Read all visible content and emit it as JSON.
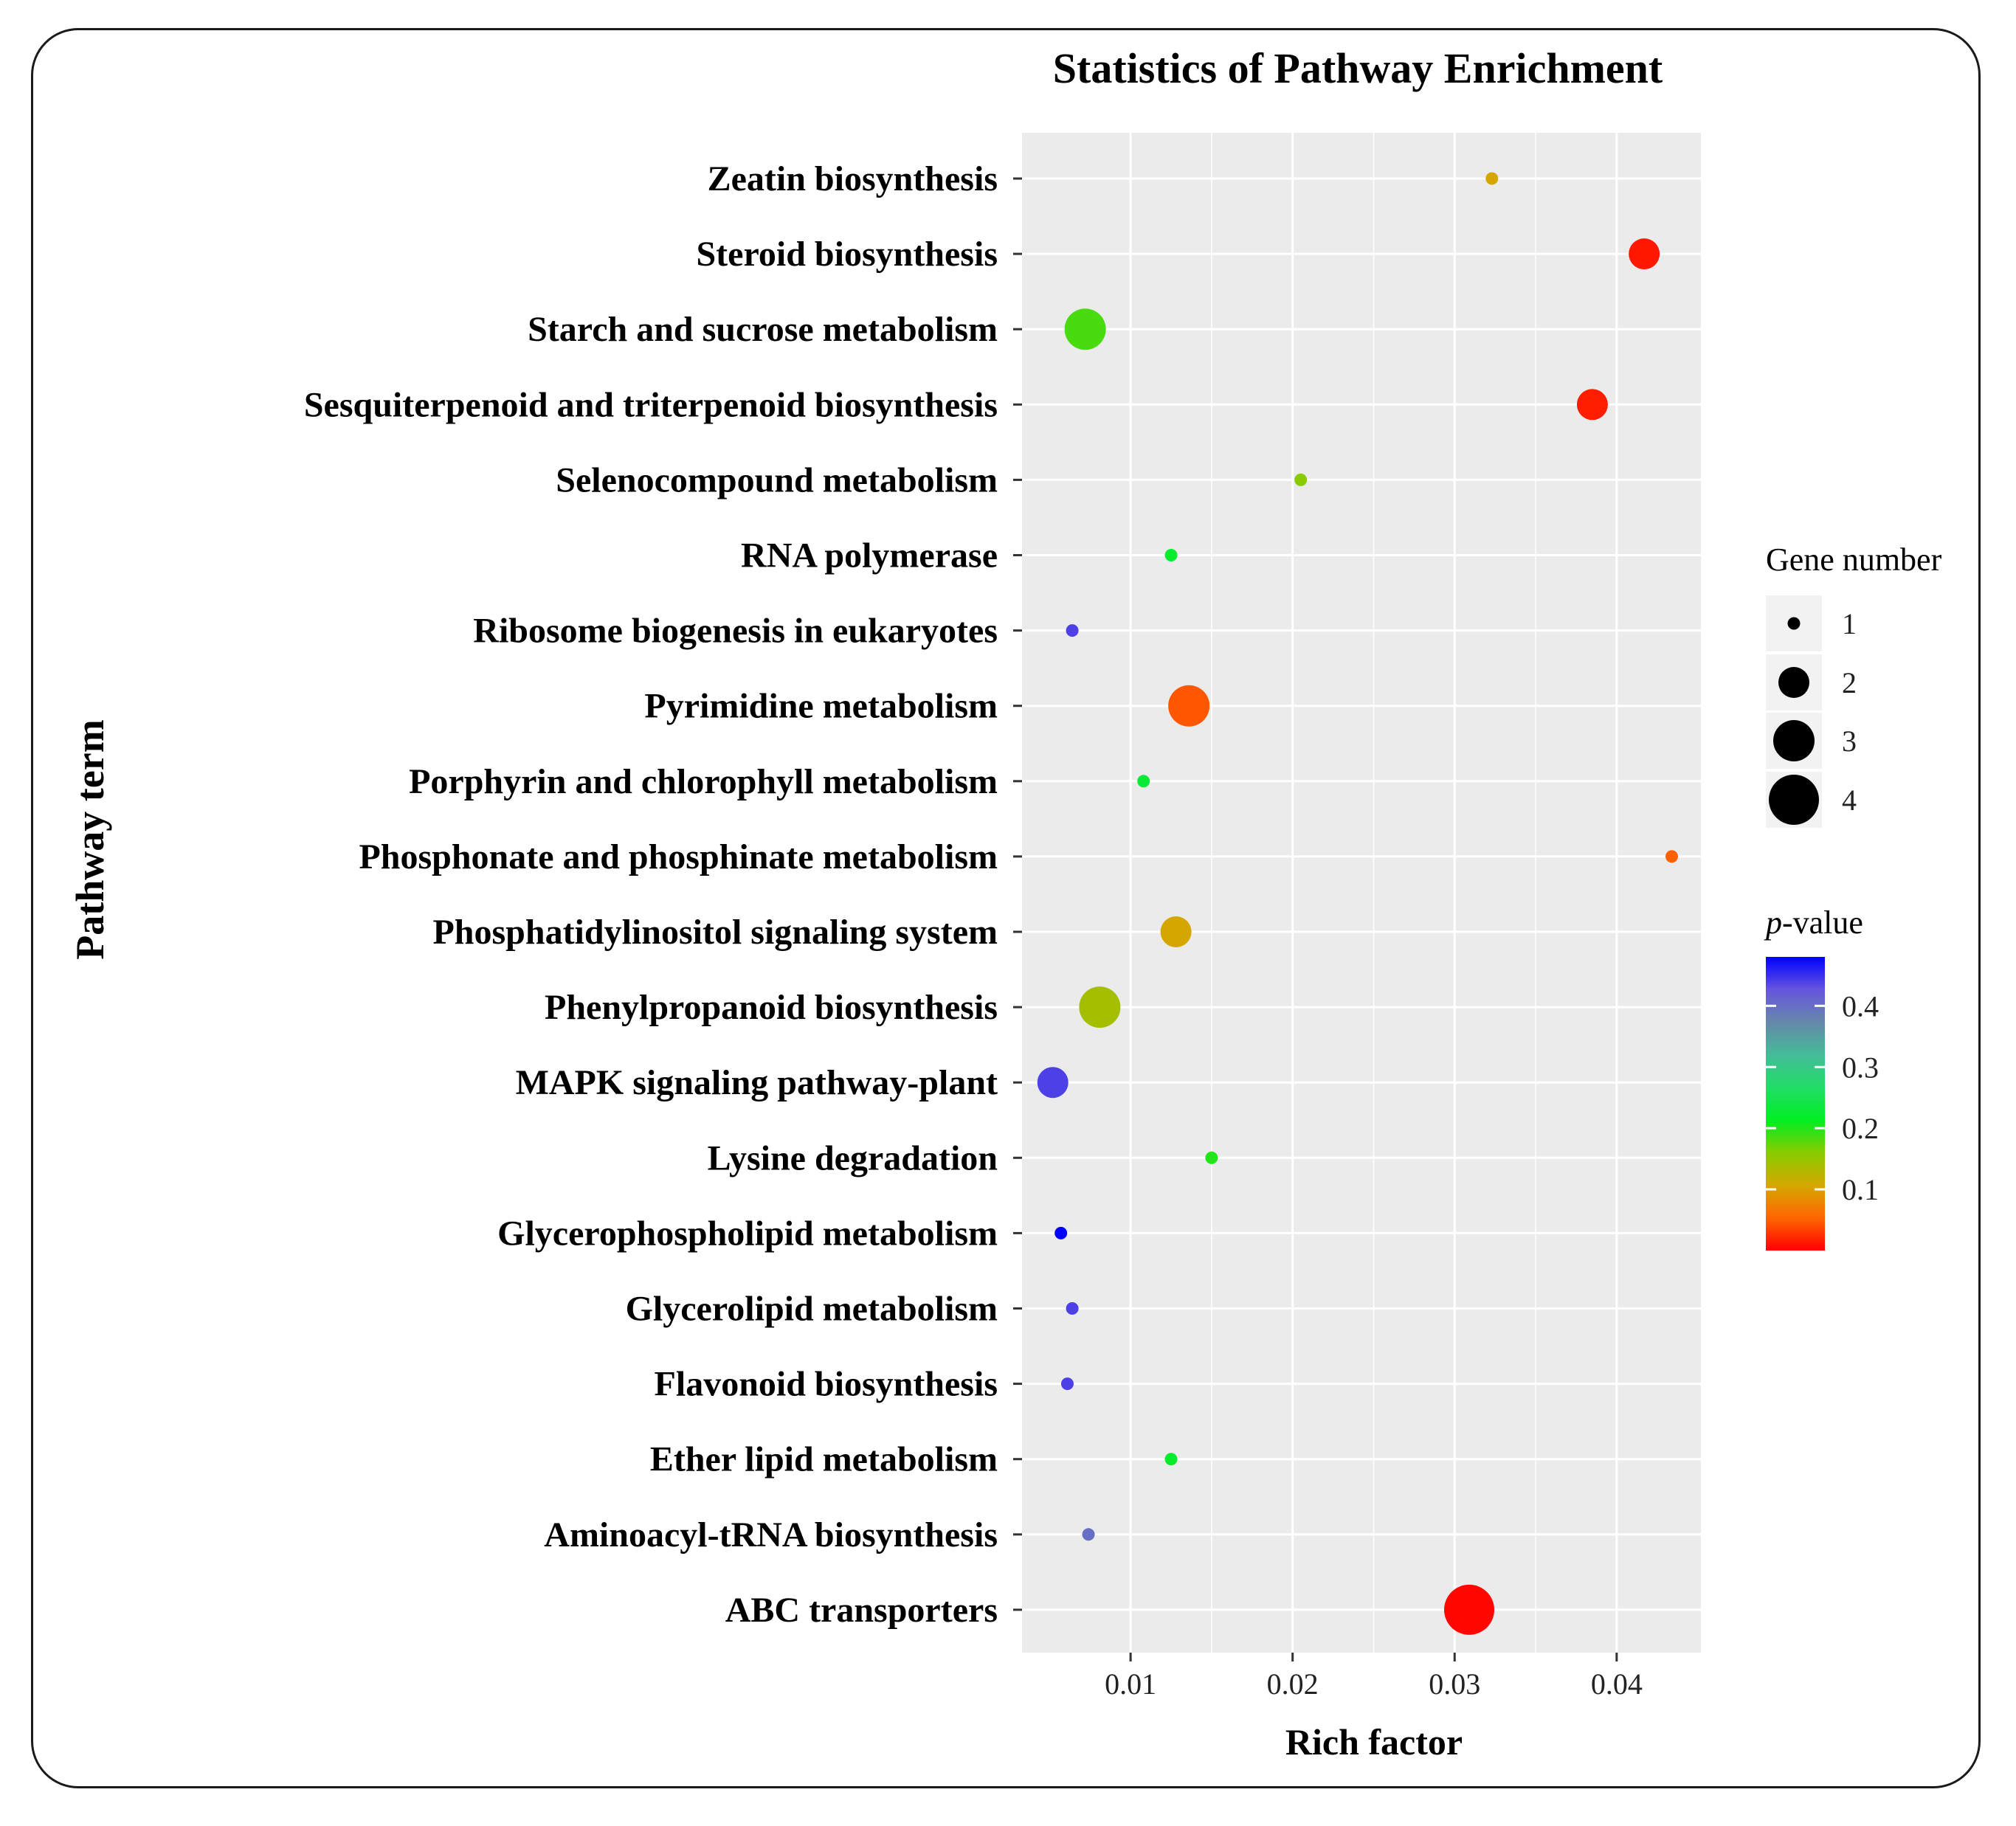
{
  "chart_data": {
    "type": "scatter",
    "title": "Statistics of Pathway Enrichment",
    "xlabel": "Rich factor",
    "ylabel": "Pathway term",
    "xlim": [
      0.0033,
      0.0452
    ],
    "x_ticks": [
      0.01,
      0.02,
      0.03,
      0.04
    ],
    "x_tick_labels": [
      "0.01",
      "0.02",
      "0.03",
      "0.04"
    ],
    "grid": true,
    "size_legend": {
      "title": "Gene number",
      "values": [
        1,
        2,
        3,
        4
      ],
      "labels": [
        "1",
        "2",
        "3",
        "4"
      ]
    },
    "color_legend": {
      "title_italic": "p",
      "title_rest": "-value",
      "range": [
        0,
        0.48
      ],
      "ticks": [
        0.1,
        0.2,
        0.3,
        0.4
      ],
      "tick_labels": [
        "0.1",
        "0.2",
        "0.3",
        "0.4"
      ],
      "stops": [
        "#ff0000",
        "#ff6600",
        "#d4a800",
        "#88cc00",
        "#00ee22",
        "#22dd66",
        "#44bb99",
        "#6688aa",
        "#6655dd",
        "#0000ff"
      ]
    },
    "points": [
      {
        "term": "Zeatin biosynthesis",
        "rich_factor": 0.0323,
        "gene_number": 1,
        "p_value": 0.105
      },
      {
        "term": "Steroid biosynthesis",
        "rich_factor": 0.0417,
        "gene_number": 2,
        "p_value": 0.012
      },
      {
        "term": "Starch and sucrose metabolism",
        "rich_factor": 0.0072,
        "gene_number": 3,
        "p_value": 0.185
      },
      {
        "term": "Sesquiterpenoid and triterpenoid biosynthesis",
        "rich_factor": 0.0385,
        "gene_number": 2,
        "p_value": 0.015
      },
      {
        "term": "Selenocompound metabolism",
        "rich_factor": 0.0205,
        "gene_number": 1,
        "p_value": 0.16
      },
      {
        "term": "RNA polymerase",
        "rich_factor": 0.0125,
        "gene_number": 1,
        "p_value": 0.22
      },
      {
        "term": "Ribosome biogenesis in eukaryotes",
        "rich_factor": 0.0064,
        "gene_number": 1,
        "p_value": 0.44
      },
      {
        "term": "Pyrimidine metabolism",
        "rich_factor": 0.0136,
        "gene_number": 3,
        "p_value": 0.045
      },
      {
        "term": "Porphyrin and chlorophyll metabolism",
        "rich_factor": 0.0108,
        "gene_number": 1,
        "p_value": 0.23
      },
      {
        "term": "Phosphonate and phosphinate metabolism",
        "rich_factor": 0.0434,
        "gene_number": 1,
        "p_value": 0.05
      },
      {
        "term": "Phosphatidylinositol signaling system",
        "rich_factor": 0.0128,
        "gene_number": 2,
        "p_value": 0.105
      },
      {
        "term": "Phenylpropanoid biosynthesis",
        "rich_factor": 0.0081,
        "gene_number": 3,
        "p_value": 0.14
      },
      {
        "term": "MAPK signaling pathway-plant",
        "rich_factor": 0.0052,
        "gene_number": 2,
        "p_value": 0.44
      },
      {
        "term": "Lysine degradation",
        "rich_factor": 0.015,
        "gene_number": 1,
        "p_value": 0.2
      },
      {
        "term": "Glycerophospholipid metabolism",
        "rich_factor": 0.0057,
        "gene_number": 1,
        "p_value": 0.48
      },
      {
        "term": "Glycerolipid metabolism",
        "rich_factor": 0.0064,
        "gene_number": 1,
        "p_value": 0.44
      },
      {
        "term": "Flavonoid biosynthesis",
        "rich_factor": 0.0061,
        "gene_number": 1,
        "p_value": 0.44
      },
      {
        "term": "Ether lipid metabolism",
        "rich_factor": 0.0125,
        "gene_number": 1,
        "p_value": 0.22
      },
      {
        "term": "Aminoacyl-tRNA biosynthesis",
        "rich_factor": 0.0074,
        "gene_number": 1,
        "p_value": 0.4
      },
      {
        "term": "ABC transporters",
        "rich_factor": 0.0309,
        "gene_number": 4,
        "p_value": 0.003
      }
    ]
  }
}
